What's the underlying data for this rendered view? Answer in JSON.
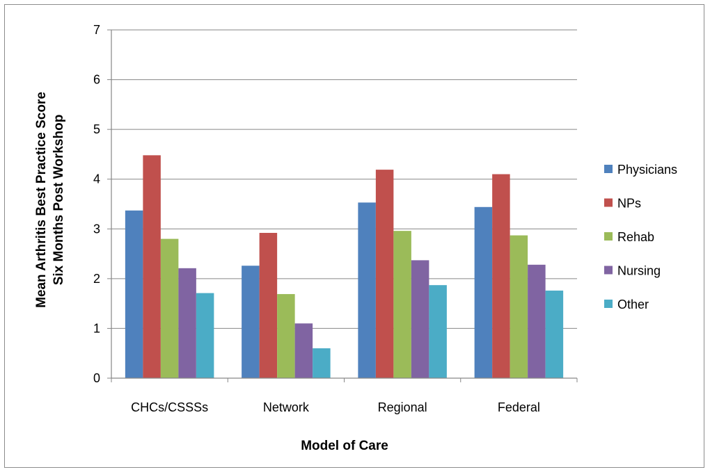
{
  "chart_data": {
    "type": "bar",
    "title": "",
    "xlabel": "Model of Care",
    "ylabel_lines": [
      "Mean Arthritis Best Practice Score",
      "Six Months Post Workshop"
    ],
    "ylim": [
      0,
      7
    ],
    "yticks": [
      0,
      1,
      2,
      3,
      4,
      5,
      6,
      7
    ],
    "grid": true,
    "legend_position": "right",
    "categories": [
      "CHCs/CSSSs",
      "Network",
      "Regional",
      "Federal"
    ],
    "series": [
      {
        "name": "Physicians",
        "color": "#4F81BD",
        "values": [
          3.37,
          2.26,
          3.53,
          3.44
        ]
      },
      {
        "name": "NPs",
        "color": "#C0504D",
        "values": [
          4.48,
          2.92,
          4.19,
          4.1
        ]
      },
      {
        "name": "Rehab",
        "color": "#9BBB59",
        "values": [
          2.8,
          1.69,
          2.96,
          2.87
        ]
      },
      {
        "name": "Nursing",
        "color": "#8064A2",
        "values": [
          2.21,
          1.1,
          2.37,
          2.28
        ]
      },
      {
        "name": "Other",
        "color": "#4BACC6",
        "values": [
          1.71,
          0.6,
          1.87,
          1.76
        ]
      }
    ]
  }
}
